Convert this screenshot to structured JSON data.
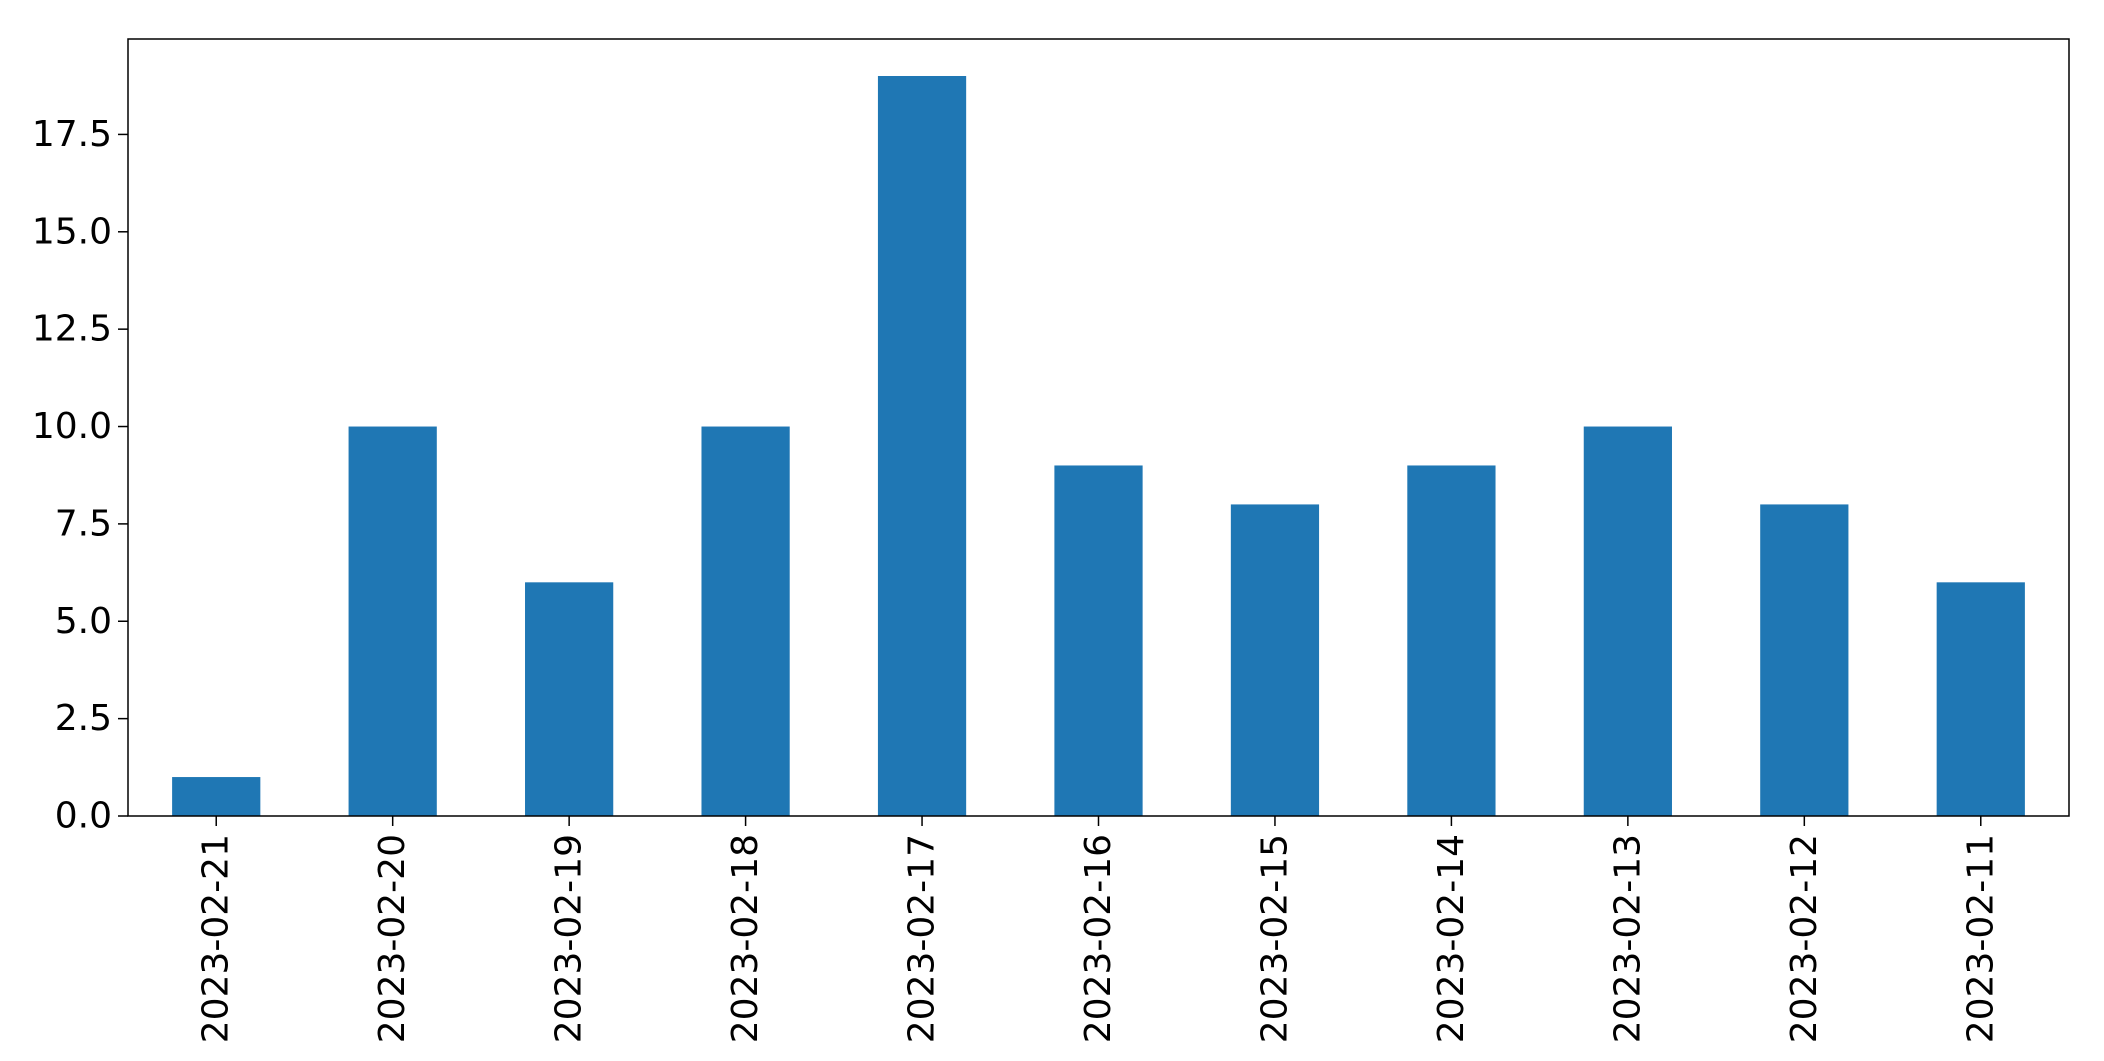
{
  "chart_data": {
    "type": "bar",
    "title": "",
    "xlabel": "",
    "ylabel": "",
    "categories": [
      "2023-02-21",
      "2023-02-20",
      "2023-02-19",
      "2023-02-18",
      "2023-02-17",
      "2023-02-16",
      "2023-02-15",
      "2023-02-14",
      "2023-02-13",
      "2023-02-12",
      "2023-02-11"
    ],
    "values": [
      1,
      10,
      6,
      10,
      19,
      9,
      8,
      9,
      10,
      8,
      6
    ],
    "ylim": [
      0,
      19.95
    ],
    "yticks": [
      0.0,
      2.5,
      5.0,
      7.5,
      10.0,
      12.5,
      15.0,
      17.5
    ],
    "ytick_labels": [
      "0.0",
      "2.5",
      "5.0",
      "7.5",
      "10.0",
      "12.5",
      "15.0",
      "17.5"
    ],
    "bar_color": "#1f77b4",
    "grid": false,
    "legend": "none"
  }
}
